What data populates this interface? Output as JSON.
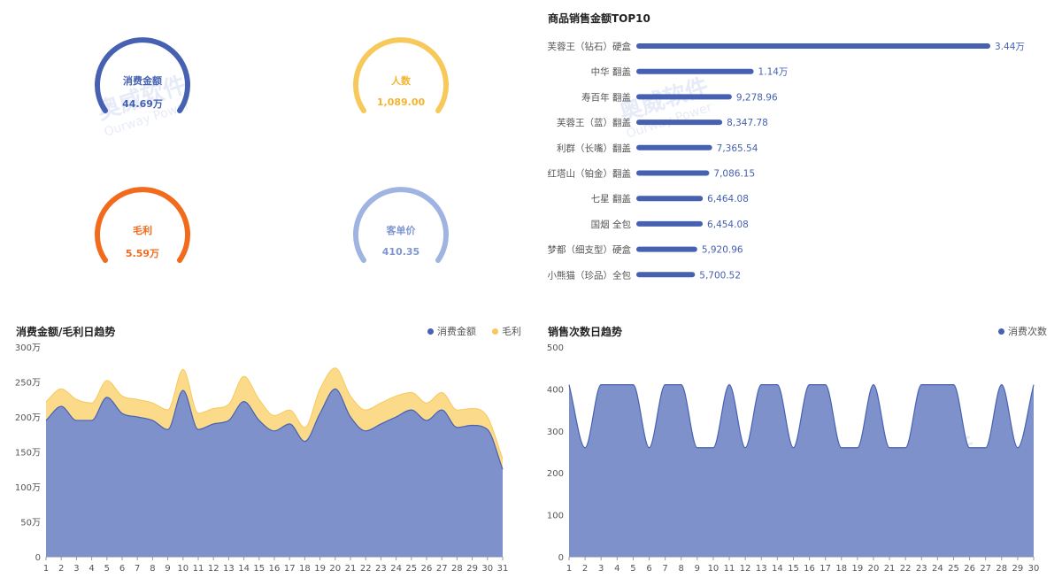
{
  "kpis": {
    "spend": {
      "label": "消费金额",
      "value": "44.69万",
      "color": "#4661b1"
    },
    "people": {
      "label": "人数",
      "value": "1,089.00",
      "color": "#f7c85a"
    },
    "profit": {
      "label": "毛利",
      "value": "5.59万",
      "color": "#f26b1d"
    },
    "avg_price": {
      "label": "客单价",
      "value": "410.35",
      "color": "#9fb4e0"
    }
  },
  "watermark": {
    "brand": "奥威软件",
    "sub": "Ourway Power"
  },
  "chart_data": [
    {
      "type": "bar",
      "orientation": "horizontal",
      "title": "商品销售金额TOP10",
      "categories": [
        "芙蓉王（钻石）硬盒",
        "中华 翻盖",
        "寿百年 翻盖",
        "芙蓉王（蓝）翻盖",
        "利群（长嘴）翻盖",
        "红塔山（铂金）翻盖",
        "七星 翻盖",
        "国烟 全包",
        "梦都（细支型）硬盒",
        "小熊猫（珍品）全包"
      ],
      "values": [
        34400,
        11400,
        9278.96,
        8347.78,
        7365.54,
        7086.15,
        6464.08,
        6454.08,
        5920.96,
        5700.52
      ],
      "data_labels": [
        "3.44万",
        "1.14万",
        "9,278.96",
        "8,347.78",
        "7,365.54",
        "7,086.15",
        "6,464.08",
        "6,454.08",
        "5,920.96",
        "5,700.52"
      ],
      "color": "#4661b1"
    },
    {
      "type": "area",
      "title": "消费金额/毛利日趋势",
      "categories": [
        "1",
        "2",
        "3",
        "4",
        "5",
        "6",
        "7",
        "8",
        "9",
        "10",
        "11",
        "12",
        "13",
        "14",
        "15",
        "16",
        "17",
        "18",
        "19",
        "20",
        "21",
        "22",
        "23",
        "24",
        "25",
        "26",
        "27",
        "28",
        "29",
        "30",
        "31"
      ],
      "series": [
        {
          "name": "消费金额",
          "color": "#7f91cb",
          "legend_color": "#4661b1",
          "values": [
            195,
            215,
            195,
            195,
            228,
            205,
            200,
            195,
            182,
            238,
            182,
            190,
            195,
            222,
            195,
            180,
            190,
            165,
            205,
            240,
            200,
            180,
            190,
            200,
            210,
            195,
            210,
            185,
            188,
            182,
            125
          ]
        },
        {
          "name": "毛利",
          "color": "#fbdb8a",
          "legend_color": "#f7c85a",
          "values": [
            222,
            240,
            225,
            220,
            252,
            230,
            225,
            220,
            210,
            268,
            205,
            212,
            218,
            258,
            225,
            202,
            210,
            185,
            240,
            270,
            230,
            210,
            220,
            230,
            235,
            220,
            235,
            210,
            212,
            200,
            140
          ]
        }
      ],
      "stacked_display": "overlay",
      "ylim": [
        0,
        300
      ],
      "yticks": [
        "0",
        "50万",
        "100万",
        "150万",
        "200万",
        "250万",
        "300万"
      ]
    },
    {
      "type": "area",
      "title": "销售次数日趋势",
      "categories": [
        "1",
        "2",
        "3",
        "4",
        "5",
        "6",
        "7",
        "8",
        "9",
        "10",
        "11",
        "12",
        "13",
        "14",
        "15",
        "16",
        "17",
        "18",
        "19",
        "20",
        "21",
        "22",
        "23",
        "24",
        "25",
        "26",
        "27",
        "28",
        "29",
        "30"
      ],
      "series": [
        {
          "name": "消费次数",
          "color": "#7f91cb",
          "legend_color": "#4661b1",
          "values": [
            410,
            260,
            410,
            410,
            410,
            260,
            410,
            410,
            260,
            260,
            410,
            260,
            410,
            410,
            260,
            410,
            410,
            260,
            260,
            410,
            260,
            260,
            410,
            410,
            410,
            260,
            260,
            410,
            260,
            410
          ]
        }
      ],
      "ylim": [
        0,
        500
      ],
      "yticks": [
        "0",
        "100",
        "200",
        "300",
        "400",
        "500"
      ]
    }
  ]
}
